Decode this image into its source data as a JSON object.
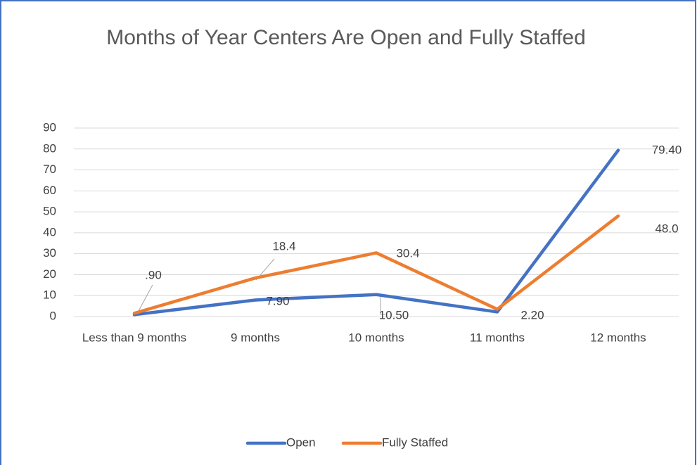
{
  "chart_data": {
    "type": "line",
    "title": "Months of Year Centers Are Open and Fully Staffed",
    "categories": [
      "Less than 9 months",
      "9 months",
      "10 months",
      "11 months",
      "12 months"
    ],
    "series": [
      {
        "name": "Open",
        "color": "#4472c4",
        "values": [
          0.9,
          7.9,
          10.5,
          2.2,
          79.4
        ],
        "value_labels": [
          ".90",
          "7.90",
          "10.50",
          "2.20",
          "79.40"
        ]
      },
      {
        "name": "Fully Staffed",
        "color": "#ed7d31",
        "values": [
          1.6,
          18.4,
          30.4,
          3.5,
          48.0
        ],
        "value_labels": [
          null,
          "18.4",
          "30.4",
          null,
          "48.0"
        ]
      }
    ],
    "ylim": [
      0,
      90
    ],
    "yticks": [
      0,
      10,
      20,
      30,
      40,
      50,
      60,
      70,
      80,
      90
    ],
    "grid": true,
    "legend": "bottom"
  }
}
